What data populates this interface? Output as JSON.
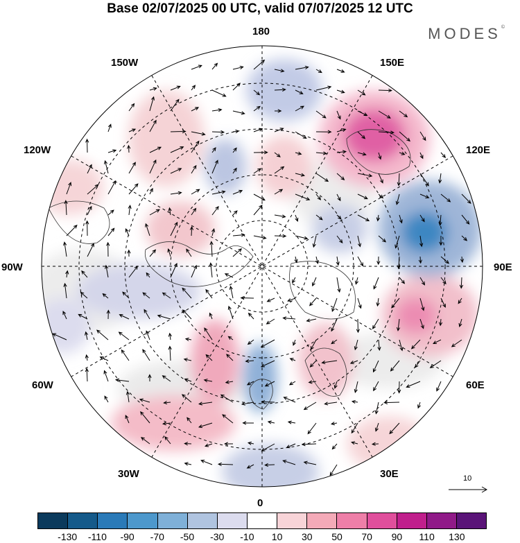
{
  "title": "Base 02/07/2025 00 UTC, valid 07/07/2025 12 UTC",
  "brand": "MODES",
  "brand_mark": "©",
  "longitude_labels": {
    "top": "180",
    "bottom": "0",
    "left": "90W",
    "right": "90E",
    "upper_left": "150W",
    "upper_right": "150E",
    "mid_left": "120W",
    "mid_right": "120E",
    "lower_left": "60W",
    "lower_right": "60E",
    "bottom_left": "30W",
    "bottom_right": "30E"
  },
  "vector_scale_label": "10",
  "colorbar": {
    "colors": [
      "#0b3a5c",
      "#155a8a",
      "#2a7ab8",
      "#4d98cc",
      "#7fb0d8",
      "#b0c4e0",
      "#dcdcee",
      "#ffffff",
      "#f8d4d8",
      "#f4aab8",
      "#ee7fa8",
      "#e04f9c",
      "#c01f8c",
      "#901a88",
      "#5a1478"
    ],
    "tick_labels": [
      "-130",
      "-110",
      "-90",
      "-70",
      "-50",
      "-30",
      "-10",
      "10",
      "30",
      "50",
      "70",
      "90",
      "110",
      "130"
    ]
  },
  "anomaly_centers": [
    {
      "lon_region": "150E",
      "sign": "positive",
      "color": "#e25a9e"
    },
    {
      "lon_region": "110E",
      "sign": "negative",
      "color": "#3a86c0"
    },
    {
      "lon_region": "80E",
      "sign": "positive",
      "color": "#ec88ac"
    },
    {
      "lon_region": "0",
      "sign": "negative",
      "color": "#6a98cc"
    },
    {
      "lon_region": "40W",
      "sign": "positive",
      "color": "#ee8aa8"
    }
  ]
}
